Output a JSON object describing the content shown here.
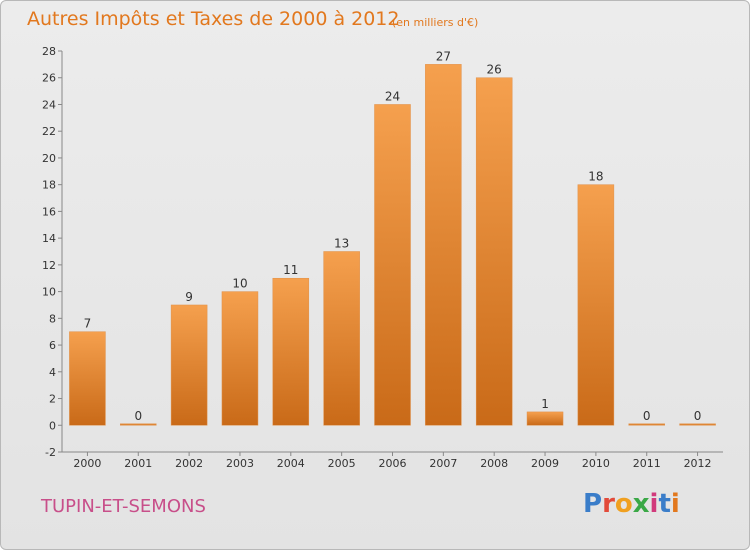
{
  "header": {
    "title": "Autres Impôts et Taxes de 2000 à 2012",
    "unit": "(en milliers d'€)"
  },
  "footer": {
    "place": "TUPIN-ET-SEMONS",
    "logo": "Proxiti"
  },
  "colors": {
    "bar_top": "#f5a04e",
    "bar_bottom": "#c96a18",
    "title": "#e2781e",
    "place": "#c84f8a"
  },
  "chart_data": {
    "type": "bar",
    "categories": [
      "2000",
      "2001",
      "2002",
      "2003",
      "2004",
      "2005",
      "2006",
      "2007",
      "2008",
      "2009",
      "2010",
      "2011",
      "2012"
    ],
    "values": [
      7,
      0,
      9,
      10,
      11,
      13,
      24,
      27,
      26,
      1,
      18,
      0,
      0
    ],
    "ylim": [
      -2,
      28
    ],
    "yticks": [
      -2,
      0,
      2,
      4,
      6,
      8,
      10,
      12,
      14,
      16,
      18,
      20,
      22,
      24,
      26,
      28
    ],
    "grid": false
  }
}
